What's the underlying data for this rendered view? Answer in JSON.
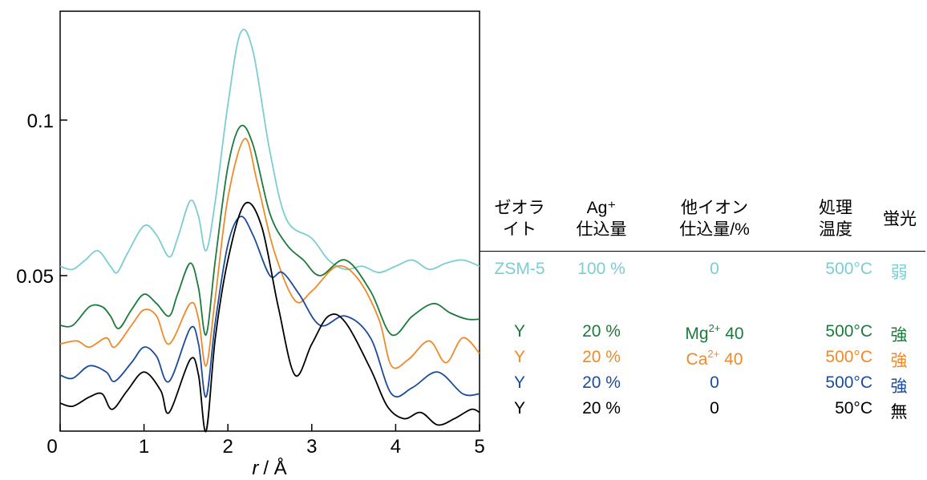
{
  "chart_data": {
    "type": "line",
    "xlabel_var": "r",
    "xlabel_unit": "/ Å",
    "xlim": [
      0,
      5
    ],
    "ylim": [
      0,
      0.135
    ],
    "xticks": [
      0,
      1,
      2,
      3,
      4,
      5
    ],
    "yticks": [
      0.05,
      0.1
    ],
    "xtick_labels": [
      "0",
      "1",
      "2",
      "3",
      "4",
      "5"
    ],
    "ytick_labels": [
      "0.05",
      "0.1"
    ],
    "series": [
      {
        "color": "#7ccdd2",
        "points": [
          [
            0,
            0.053
          ],
          [
            0.15,
            0.052
          ],
          [
            0.3,
            0.055
          ],
          [
            0.45,
            0.058
          ],
          [
            0.6,
            0.053
          ],
          [
            0.68,
            0.051
          ],
          [
            0.8,
            0.057
          ],
          [
            1.0,
            0.066
          ],
          [
            1.15,
            0.063
          ],
          [
            1.3,
            0.056
          ],
          [
            1.4,
            0.062
          ],
          [
            1.55,
            0.074
          ],
          [
            1.65,
            0.069
          ],
          [
            1.74,
            0.058
          ],
          [
            1.85,
            0.074
          ],
          [
            2.0,
            0.105
          ],
          [
            2.15,
            0.128
          ],
          [
            2.3,
            0.122
          ],
          [
            2.5,
            0.09
          ],
          [
            2.7,
            0.068
          ],
          [
            3.0,
            0.062
          ],
          [
            3.2,
            0.055
          ],
          [
            3.4,
            0.052
          ],
          [
            3.6,
            0.053
          ],
          [
            3.8,
            0.051
          ],
          [
            4.0,
            0.053
          ],
          [
            4.2,
            0.055
          ],
          [
            4.4,
            0.052
          ],
          [
            4.6,
            0.054
          ],
          [
            4.8,
            0.055
          ],
          [
            5.0,
            0.053
          ]
        ]
      },
      {
        "color": "#1b7a3c",
        "points": [
          [
            0,
            0.034
          ],
          [
            0.15,
            0.034
          ],
          [
            0.35,
            0.04
          ],
          [
            0.5,
            0.04
          ],
          [
            0.6,
            0.037
          ],
          [
            0.7,
            0.033
          ],
          [
            0.85,
            0.039
          ],
          [
            1.0,
            0.044
          ],
          [
            1.15,
            0.041
          ],
          [
            1.3,
            0.037
          ],
          [
            1.4,
            0.044
          ],
          [
            1.55,
            0.054
          ],
          [
            1.65,
            0.046
          ],
          [
            1.74,
            0.031
          ],
          [
            1.85,
            0.055
          ],
          [
            2.0,
            0.085
          ],
          [
            2.15,
            0.098
          ],
          [
            2.3,
            0.092
          ],
          [
            2.5,
            0.07
          ],
          [
            2.7,
            0.06
          ],
          [
            2.9,
            0.055
          ],
          [
            3.1,
            0.05
          ],
          [
            3.4,
            0.055
          ],
          [
            3.7,
            0.045
          ],
          [
            3.95,
            0.031
          ],
          [
            4.2,
            0.037
          ],
          [
            4.45,
            0.041
          ],
          [
            4.65,
            0.038
          ],
          [
            4.85,
            0.036
          ],
          [
            5.0,
            0.036
          ]
        ]
      },
      {
        "color": "#ee8a2a",
        "points": [
          [
            0,
            0.028
          ],
          [
            0.2,
            0.029
          ],
          [
            0.35,
            0.027
          ],
          [
            0.55,
            0.03
          ],
          [
            0.65,
            0.027
          ],
          [
            0.85,
            0.034
          ],
          [
            1.0,
            0.039
          ],
          [
            1.15,
            0.037
          ],
          [
            1.3,
            0.028
          ],
          [
            1.55,
            0.041
          ],
          [
            1.65,
            0.036
          ],
          [
            1.74,
            0.021
          ],
          [
            1.85,
            0.043
          ],
          [
            2.0,
            0.075
          ],
          [
            2.2,
            0.094
          ],
          [
            2.35,
            0.08
          ],
          [
            2.55,
            0.058
          ],
          [
            2.8,
            0.042
          ],
          [
            3.0,
            0.045
          ],
          [
            3.3,
            0.053
          ],
          [
            3.55,
            0.049
          ],
          [
            3.8,
            0.036
          ],
          [
            3.95,
            0.021
          ],
          [
            4.15,
            0.023
          ],
          [
            4.4,
            0.029
          ],
          [
            4.6,
            0.022
          ],
          [
            4.8,
            0.03
          ],
          [
            5.0,
            0.025
          ]
        ]
      },
      {
        "color": "#1b4c9b",
        "points": [
          [
            0,
            0.018
          ],
          [
            0.15,
            0.017
          ],
          [
            0.35,
            0.021
          ],
          [
            0.55,
            0.019
          ],
          [
            0.65,
            0.016
          ],
          [
            0.85,
            0.022
          ],
          [
            1.0,
            0.027
          ],
          [
            1.15,
            0.024
          ],
          [
            1.3,
            0.016
          ],
          [
            1.55,
            0.033
          ],
          [
            1.65,
            0.028
          ],
          [
            1.74,
            0.011
          ],
          [
            1.85,
            0.035
          ],
          [
            2.0,
            0.06
          ],
          [
            2.15,
            0.069
          ],
          [
            2.3,
            0.063
          ],
          [
            2.5,
            0.05
          ],
          [
            2.65,
            0.051
          ],
          [
            2.85,
            0.044
          ],
          [
            3.1,
            0.034
          ],
          [
            3.4,
            0.037
          ],
          [
            3.7,
            0.03
          ],
          [
            3.95,
            0.012
          ],
          [
            4.2,
            0.014
          ],
          [
            4.5,
            0.019
          ],
          [
            4.8,
            0.012
          ],
          [
            5.0,
            0.012
          ]
        ]
      },
      {
        "color": "#000000",
        "points": [
          [
            0,
            0.009
          ],
          [
            0.15,
            0.008
          ],
          [
            0.35,
            0.011
          ],
          [
            0.5,
            0.012
          ],
          [
            0.62,
            0.007
          ],
          [
            0.8,
            0.013
          ],
          [
            1.0,
            0.019
          ],
          [
            1.2,
            0.013
          ],
          [
            1.3,
            0.006
          ],
          [
            1.55,
            0.023
          ],
          [
            1.65,
            0.018
          ],
          [
            1.74,
            0.0
          ],
          [
            1.85,
            0.03
          ],
          [
            2.0,
            0.055
          ],
          [
            2.2,
            0.073
          ],
          [
            2.4,
            0.066
          ],
          [
            2.6,
            0.04
          ],
          [
            2.8,
            0.018
          ],
          [
            3.0,
            0.028
          ],
          [
            3.2,
            0.037
          ],
          [
            3.4,
            0.035
          ],
          [
            3.7,
            0.02
          ],
          [
            3.9,
            0.008
          ],
          [
            4.1,
            0.004
          ],
          [
            4.3,
            0.006
          ],
          [
            4.5,
            0.002
          ],
          [
            4.7,
            0.004
          ],
          [
            4.9,
            0.007
          ],
          [
            5.0,
            0.006
          ]
        ]
      }
    ]
  },
  "table": {
    "headers": [
      {
        "line1": "ゼオラ",
        "line2": "イト"
      },
      {
        "line1": "Ag⁺",
        "line2": "仕込量"
      },
      {
        "line1": "他イオン",
        "line2": "仕込量/%"
      },
      {
        "line1": "処理",
        "line2": "温度"
      },
      {
        "line1": "蛍光",
        "line2": ""
      }
    ],
    "rows": [
      {
        "color": "#7ccdd2",
        "zeolite": "ZSM-5",
        "ag": "100 %",
        "ion": "0",
        "ion_sup": "",
        "ion_val": "",
        "temp": "500°C",
        "fluor": "弱"
      },
      {
        "color": "#1b7a3c",
        "zeolite": "Y",
        "ag": "20 %",
        "ion": "Mg",
        "ion_sup": "2+",
        "ion_val": " 40",
        "temp": "500°C",
        "fluor": "強"
      },
      {
        "color": "#ee8a2a",
        "zeolite": "Y",
        "ag": "20 %",
        "ion": "Ca",
        "ion_sup": "2+",
        "ion_val": " 40",
        "temp": "500°C",
        "fluor": "強"
      },
      {
        "color": "#1b4c9b",
        "zeolite": "Y",
        "ag": "20 %",
        "ion": "0",
        "ion_sup": "",
        "ion_val": "",
        "temp": "500°C",
        "fluor": "強"
      },
      {
        "color": "#000000",
        "zeolite": "Y",
        "ag": "20 %",
        "ion": "0",
        "ion_sup": "",
        "ion_val": "",
        "temp": "50°C",
        "fluor": "無"
      }
    ]
  }
}
